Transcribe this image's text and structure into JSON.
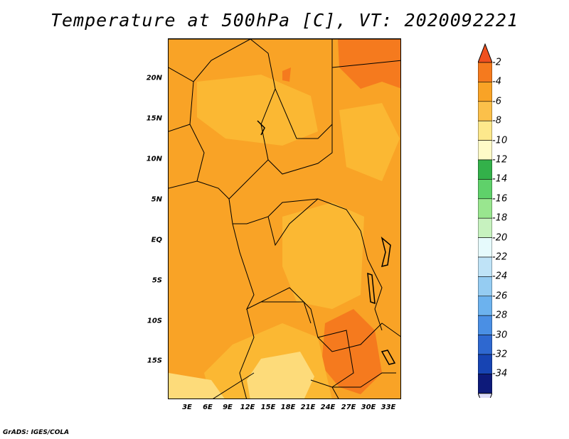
{
  "title": "Temperature at 500hPa [C], VT: 2020092221",
  "footer": "GrADS: IGES/COLA",
  "map": {
    "lat_labels": [
      "20N",
      "15N",
      "10N",
      "5N",
      "EQ",
      "5S",
      "10S",
      "15S"
    ],
    "lon_labels": [
      "3E",
      "6E",
      "9E",
      "12E",
      "15E",
      "18E",
      "21E",
      "24E",
      "27E",
      "30E",
      "33E"
    ],
    "background_color": "#f9a326",
    "warm_color": "#f57a1e",
    "cool_color": "#fbb833",
    "coolest_color": "#fddb7a"
  },
  "colorbar": {
    "labels": [
      "-2",
      "-4",
      "-6",
      "-8",
      "-10",
      "-12",
      "-14",
      "-16",
      "-18",
      "-20",
      "-22",
      "-24",
      "-26",
      "-28",
      "-30",
      "-32",
      "-34"
    ],
    "colors": [
      "#f0501f",
      "#f57a1e",
      "#f9a326",
      "#fbc04a",
      "#fde88c",
      "#fffac8",
      "#33b14a",
      "#5fd16a",
      "#99e68f",
      "#c7f2bf",
      "#e6fafc",
      "#bfe3f7",
      "#95ccf2",
      "#6cb2ee",
      "#4a8fe4",
      "#2e68d0",
      "#1744b3",
      "#0d1a7a",
      "#dcdcf8"
    ]
  }
}
